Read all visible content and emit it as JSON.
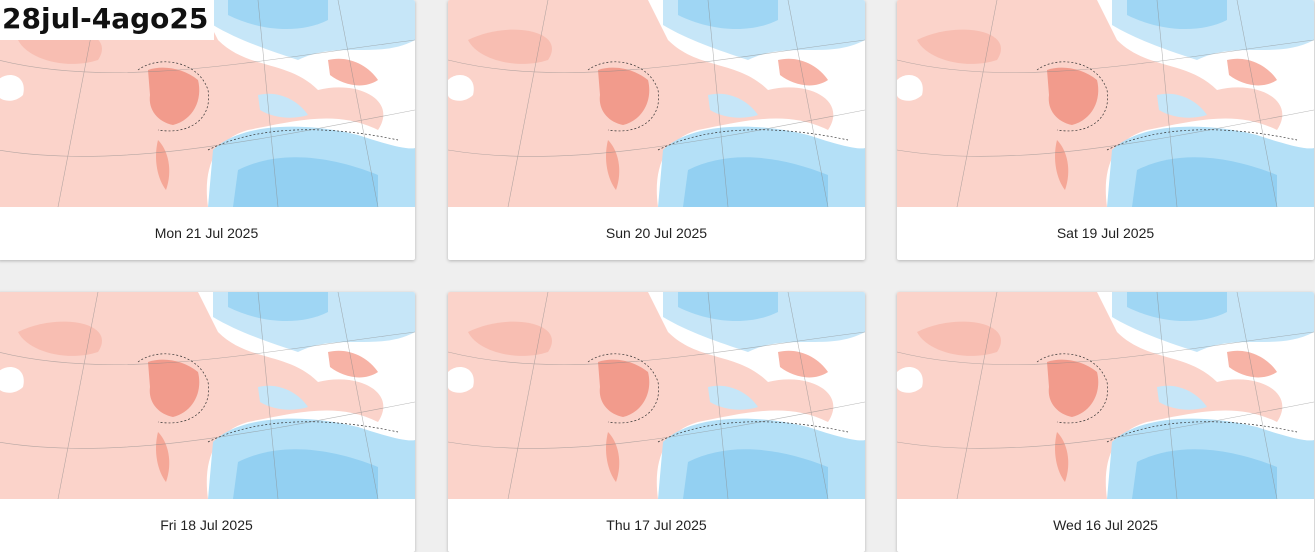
{
  "title": "28jul-4ago25",
  "cards": [
    {
      "date": "Mon 21 Jul 2025"
    },
    {
      "date": "Sun 20 Jul 2025"
    },
    {
      "date": "Sat 19 Jul 2025"
    },
    {
      "date": "Fri 18 Jul 2025"
    },
    {
      "date": "Thu 17 Jul 2025"
    },
    {
      "date": "Wed 16 Jul 2025"
    }
  ]
}
